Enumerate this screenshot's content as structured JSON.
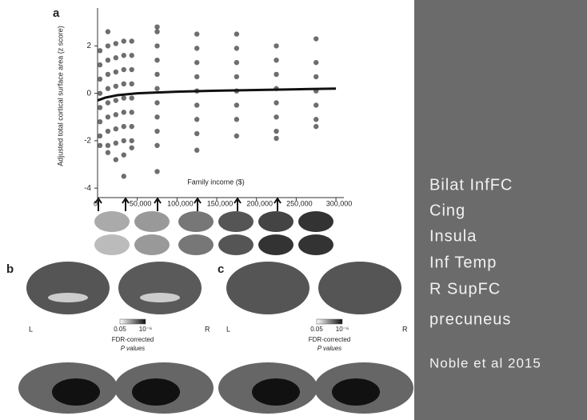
{
  "chart_data": {
    "type": "scatter",
    "panel_label": "a",
    "xlabel": "Family income ($)",
    "ylabel": "Adjusted total cortical surface area (z score)",
    "x": [
      3000,
      3000,
      3000,
      3000,
      3000,
      3000,
      3000,
      3000,
      13000,
      13000,
      13000,
      13000,
      13000,
      13000,
      13000,
      13000,
      13000,
      13000,
      23000,
      23000,
      23000,
      23000,
      23000,
      23000,
      23000,
      23000,
      23000,
      33000,
      33000,
      33000,
      33000,
      33000,
      33000,
      33000,
      33000,
      33000,
      33000,
      43000,
      43000,
      43000,
      43000,
      43000,
      43000,
      43000,
      43000,
      43000,
      75000,
      75000,
      75000,
      75000,
      75000,
      75000,
      75000,
      75000,
      75000,
      75000,
      75000,
      125000,
      125000,
      125000,
      125000,
      125000,
      125000,
      125000,
      125000,
      125000,
      175000,
      175000,
      175000,
      175000,
      175000,
      175000,
      175000,
      175000,
      225000,
      225000,
      225000,
      225000,
      225000,
      225000,
      225000,
      225000,
      275000,
      275000,
      275000,
      275000,
      275000,
      275000,
      275000
    ],
    "values": [
      1.8,
      1.2,
      0.6,
      0,
      -0.6,
      -1.2,
      -1.8,
      -2.2,
      2.6,
      2.0,
      1.4,
      0.8,
      0.2,
      -0.4,
      -1.0,
      -1.6,
      -2.2,
      -2.5,
      2.1,
      1.5,
      0.9,
      0.3,
      -0.3,
      -0.9,
      -1.5,
      -2.1,
      -2.8,
      2.2,
      1.6,
      1.0,
      0.4,
      -0.2,
      -0.8,
      -1.4,
      -2.0,
      -2.6,
      -3.5,
      2.2,
      1.6,
      1.0,
      0.4,
      -0.2,
      -0.8,
      -1.4,
      -2.0,
      -2.3,
      2.8,
      2.6,
      2.0,
      1.4,
      0.8,
      0.2,
      -0.4,
      -1.0,
      -1.6,
      -2.2,
      -3.3,
      2.5,
      1.9,
      1.3,
      0.7,
      0.1,
      -0.5,
      -1.1,
      -1.7,
      -2.4,
      2.5,
      1.9,
      1.3,
      0.7,
      0.1,
      -0.5,
      -1.1,
      -1.8,
      2.0,
      1.4,
      0.8,
      0.2,
      -0.4,
      -1.0,
      -1.6,
      -1.9,
      2.3,
      1.3,
      0.7,
      0.1,
      -0.5,
      -1.1,
      -1.4
    ],
    "color": "#4a4a4a",
    "fit": {
      "x": [
        0,
        10000,
        25000,
        50000,
        100000,
        150000,
        200000,
        250000,
        300000
      ],
      "values": [
        -0.3,
        -0.18,
        -0.08,
        0,
        0.07,
        0.11,
        0.14,
        0.17,
        0.2
      ],
      "color": "#111111"
    },
    "xlim": [
      0,
      310000
    ],
    "ylim": [
      -4.4,
      3.6
    ],
    "xticks": [
      0,
      {
        "value": 50000,
        "label": "50,000"
      },
      {
        "value": 100000,
        "label": "100,000"
      },
      {
        "value": 150000,
        "label": "150,000"
      },
      {
        "value": 200000,
        "label": "200,000"
      },
      {
        "value": 250000,
        "label": "250,000"
      },
      {
        "value": 300000,
        "label": "300,000"
      }
    ],
    "yticks": [
      -4,
      -2,
      0,
      2
    ]
  },
  "panels": [
    {
      "label": "b",
      "left": "L",
      "right": "R",
      "scale_min": "0.05",
      "scale_max": "10⁻⁶",
      "scale_title": "FDR-corrected",
      "scale_subtitle": "P values"
    },
    {
      "label": "c",
      "left": "L",
      "right": "R",
      "scale_min": "0.05",
      "scale_max": "10⁻⁶",
      "scale_title": "FDR-corrected",
      "scale_subtitle": "P values"
    }
  ],
  "sidebar": {
    "items": [
      "Bilat InfFC",
      "Cing",
      "Insula",
      "Inf Temp",
      "R SupFC",
      "precuneus"
    ],
    "citation": "Noble et al 2015"
  }
}
